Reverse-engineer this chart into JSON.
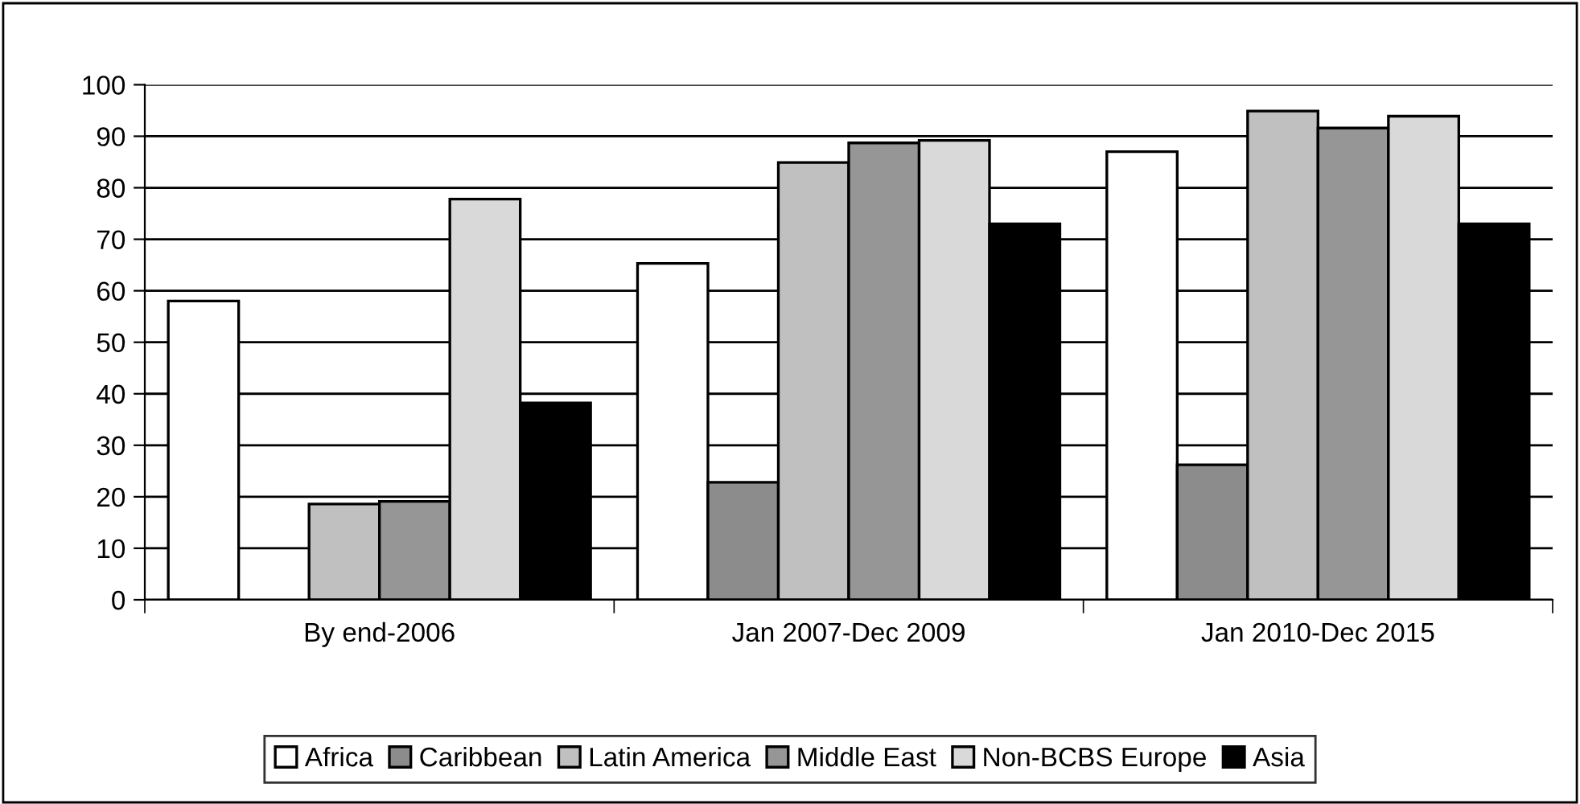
{
  "chart_data": {
    "type": "bar",
    "categories": [
      "By end-2006",
      "Jan 2007-Dec 2009",
      "Jan 2010-Dec 2015"
    ],
    "series": [
      {
        "name": "Africa",
        "color": "#ffffff",
        "values": [
          58,
          65.3,
          87
        ]
      },
      {
        "name": "Caribbean",
        "color": "#8c8c8c",
        "values": [
          null,
          22.8,
          26.2
        ]
      },
      {
        "name": "Latin America",
        "color": "#c0c0c0",
        "values": [
          18.6,
          84.9,
          94.9
        ]
      },
      {
        "name": "Middle East",
        "color": "#969696",
        "values": [
          19.1,
          88.7,
          91.6
        ]
      },
      {
        "name": "Non-BCBS Europe",
        "color": "#d9d9d9",
        "values": [
          77.8,
          89.2,
          93.9
        ]
      },
      {
        "name": "Asia",
        "color": "#000000",
        "values": [
          38.2,
          73,
          73
        ]
      }
    ],
    "ylim": [
      0,
      100
    ],
    "yticks": [
      0,
      10,
      20,
      30,
      40,
      50,
      60,
      70,
      80,
      90,
      100
    ],
    "grid": "y",
    "legend": "bottom"
  }
}
